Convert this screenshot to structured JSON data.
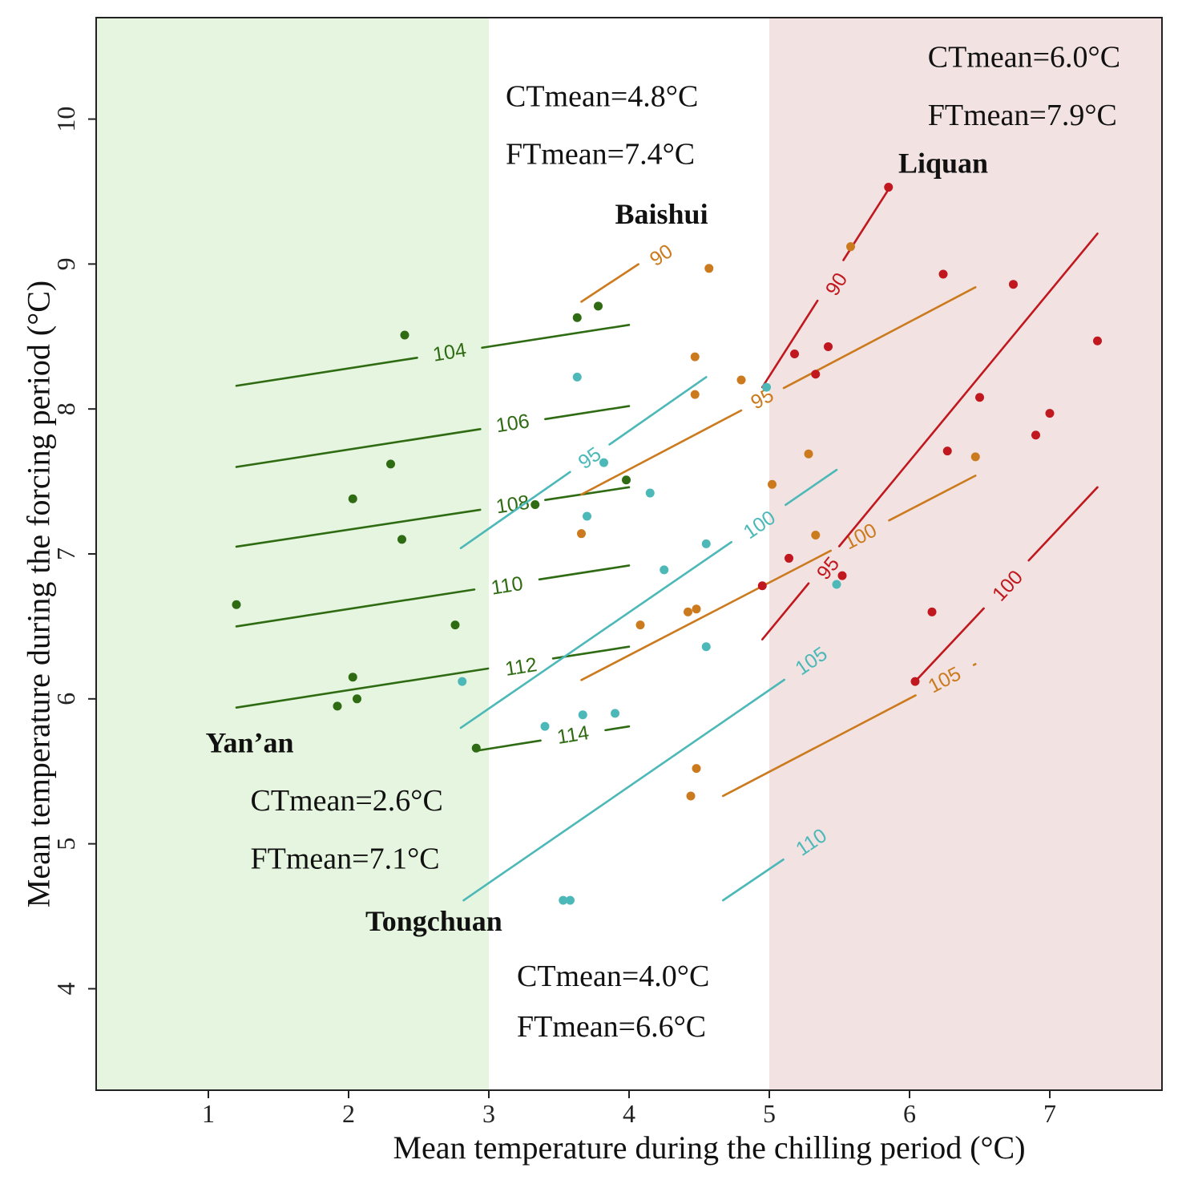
{
  "chart_data": {
    "type": "scatter",
    "xlabel": "Mean temperature during the chilling period (°C)",
    "ylabel": "Mean temperature during the forcing period (°C)",
    "xlim": [
      0.2,
      7.8
    ],
    "ylim": [
      3.3,
      10.7
    ],
    "x_ticks": [
      1,
      2,
      3,
      4,
      5,
      6,
      7
    ],
    "y_ticks": [
      4,
      5,
      6,
      7,
      8,
      9,
      10
    ],
    "grid": false,
    "zones": [
      {
        "x_from": 0.2,
        "x_to": 3.0,
        "color": "#e6f5df"
      },
      {
        "x_from": 3.0,
        "x_to": 5.0,
        "color": "#ffffff"
      },
      {
        "x_from": 5.0,
        "x_to": 7.8,
        "color": "#f2e3e2"
      }
    ],
    "sites": [
      {
        "name": "Yan’an",
        "color": "#2e6b12",
        "label": {
          "text": "Yan’an",
          "x": 0.98,
          "y": 5.63
        },
        "stats": [
          {
            "text": "CTmean=2.6°C",
            "x": 1.3,
            "y": 5.23
          },
          {
            "text": "FTmean=7.1°C",
            "x": 1.3,
            "y": 4.83
          }
        ],
        "points": [
          [
            1.2,
            6.65
          ],
          [
            1.92,
            5.95
          ],
          [
            2.03,
            6.15
          ],
          [
            2.06,
            6.0
          ],
          [
            2.03,
            7.38
          ],
          [
            2.3,
            7.62
          ],
          [
            2.38,
            7.1
          ],
          [
            2.4,
            8.51
          ],
          [
            2.76,
            6.51
          ],
          [
            2.91,
            5.66
          ],
          [
            3.33,
            7.34
          ],
          [
            3.63,
            8.63
          ],
          [
            3.78,
            8.71
          ],
          [
            3.98,
            7.51
          ]
        ],
        "contours": [
          {
            "level": "104",
            "x1": 1.2,
            "y1": 8.16,
            "x2": 4.0,
            "y2": 8.58,
            "lx": 2.72,
            "ly": 8.39
          },
          {
            "level": "106",
            "x1": 1.2,
            "y1": 7.6,
            "x2": 4.0,
            "y2": 8.02,
            "lx": 3.17,
            "ly": 7.9
          },
          {
            "level": "108",
            "x1": 1.2,
            "y1": 7.05,
            "x2": 4.0,
            "y2": 7.46,
            "lx": 3.17,
            "ly": 7.34
          },
          {
            "level": "110",
            "x1": 1.2,
            "y1": 6.5,
            "x2": 4.0,
            "y2": 6.92,
            "lx": 3.13,
            "ly": 6.78
          },
          {
            "level": "112",
            "x1": 1.2,
            "y1": 5.94,
            "x2": 4.0,
            "y2": 6.36,
            "lx": 3.23,
            "ly": 6.22
          },
          {
            "level": "114",
            "x1": 2.9,
            "y1": 5.64,
            "x2": 4.0,
            "y2": 5.81,
            "lx": 3.6,
            "ly": 5.75
          }
        ]
      },
      {
        "name": "Tongchuan",
        "color": "#4cb8b8",
        "label": {
          "text": "Tongchuan",
          "x": 2.12,
          "y": 4.4
        },
        "stats": [
          {
            "text": "CTmean=4.0°C",
            "x": 3.2,
            "y": 4.02
          },
          {
            "text": "FTmean=6.6°C",
            "x": 3.2,
            "y": 3.67
          }
        ],
        "points": [
          [
            2.81,
            6.12
          ],
          [
            3.4,
            5.81
          ],
          [
            3.53,
            4.61
          ],
          [
            3.58,
            4.61
          ],
          [
            3.63,
            8.22
          ],
          [
            3.67,
            5.89
          ],
          [
            3.7,
            7.26
          ],
          [
            3.82,
            7.63
          ],
          [
            3.9,
            5.9
          ],
          [
            4.15,
            7.42
          ],
          [
            4.25,
            6.89
          ],
          [
            4.55,
            6.36
          ],
          [
            4.55,
            7.07
          ],
          [
            4.98,
            8.15
          ],
          [
            5.48,
            6.79
          ]
        ],
        "contours": [
          {
            "level": "95",
            "x1": 2.8,
            "y1": 7.04,
            "x2": 4.55,
            "y2": 8.22,
            "lx": 3.72,
            "ly": 7.66
          },
          {
            "level": "100",
            "x1": 2.8,
            "y1": 5.8,
            "x2": 5.48,
            "y2": 7.58,
            "lx": 4.93,
            "ly": 7.2
          },
          {
            "level": "105",
            "x1": 2.82,
            "y1": 4.61,
            "x2": 5.48,
            "y2": 6.38,
            "lx": 5.3,
            "ly": 6.26
          },
          {
            "level": "110",
            "x1": 4.67,
            "y1": 4.61,
            "x2": 5.48,
            "y2": 5.14,
            "lx": 5.3,
            "ly": 5.01
          }
        ]
      },
      {
        "name": "Baishui",
        "color": "#cc7a1e",
        "label": {
          "text": "Baishui",
          "x": 3.9,
          "y": 9.28
        },
        "stats": [
          {
            "text": "CTmean=4.8°C",
            "x": 3.12,
            "y": 10.09
          },
          {
            "text": "FTmean=7.4°C",
            "x": 3.12,
            "y": 9.69
          }
        ],
        "points": [
          [
            3.66,
            7.14
          ],
          [
            4.08,
            6.51
          ],
          [
            4.42,
            6.6
          ],
          [
            4.44,
            5.33
          ],
          [
            4.48,
            6.62
          ],
          [
            4.48,
            5.52
          ],
          [
            4.47,
            8.1
          ],
          [
            4.47,
            8.36
          ],
          [
            4.57,
            8.97
          ],
          [
            4.8,
            8.2
          ],
          [
            5.02,
            7.48
          ],
          [
            5.28,
            7.69
          ],
          [
            5.33,
            7.13
          ],
          [
            5.58,
            9.12
          ],
          [
            6.47,
            7.67
          ]
        ],
        "contours": [
          {
            "level": "90",
            "x1": 3.66,
            "y1": 8.74,
            "x2": 4.1,
            "y2": 9.02,
            "lx": 4.23,
            "ly": 9.06
          },
          {
            "level": "95",
            "x1": 3.66,
            "y1": 7.41,
            "x2": 6.47,
            "y2": 8.84,
            "lx": 4.95,
            "ly": 8.07
          },
          {
            "level": "100",
            "x1": 3.66,
            "y1": 6.13,
            "x2": 6.47,
            "y2": 7.54,
            "lx": 5.65,
            "ly": 7.12
          },
          {
            "level": "105",
            "x1": 4.67,
            "y1": 5.33,
            "x2": 6.47,
            "y2": 6.24,
            "lx": 6.25,
            "ly": 6.13
          }
        ]
      },
      {
        "name": "Liquan",
        "color": "#c0181e",
        "label": {
          "text": "Liquan",
          "x": 5.92,
          "y": 9.63
        },
        "stats": [
          {
            "text": "CTmean=6.0°C",
            "x": 6.13,
            "y": 10.36
          },
          {
            "text": "FTmean=7.9°C",
            "x": 6.13,
            "y": 9.96
          }
        ],
        "points": [
          [
            4.95,
            6.78
          ],
          [
            5.14,
            6.97
          ],
          [
            5.18,
            8.38
          ],
          [
            5.33,
            8.24
          ],
          [
            5.42,
            8.43
          ],
          [
            5.52,
            6.85
          ],
          [
            5.85,
            9.53
          ],
          [
            6.04,
            6.12
          ],
          [
            6.16,
            6.6
          ],
          [
            6.24,
            8.93
          ],
          [
            6.27,
            7.71
          ],
          [
            6.5,
            8.08
          ],
          [
            6.74,
            8.86
          ],
          [
            6.9,
            7.82
          ],
          [
            7.0,
            7.97
          ],
          [
            7.34,
            8.47
          ]
        ],
        "contours": [
          {
            "level": "90",
            "x1": 4.95,
            "y1": 8.15,
            "x2": 5.86,
            "y2": 9.53,
            "lx": 5.48,
            "ly": 8.86
          },
          {
            "level": "95",
            "x1": 4.95,
            "y1": 6.41,
            "x2": 7.34,
            "y2": 9.21,
            "lx": 5.42,
            "ly": 6.9
          },
          {
            "level": "100",
            "x1": 6.04,
            "y1": 6.12,
            "x2": 7.34,
            "y2": 7.46,
            "lx": 6.7,
            "ly": 6.78
          }
        ]
      }
    ]
  }
}
